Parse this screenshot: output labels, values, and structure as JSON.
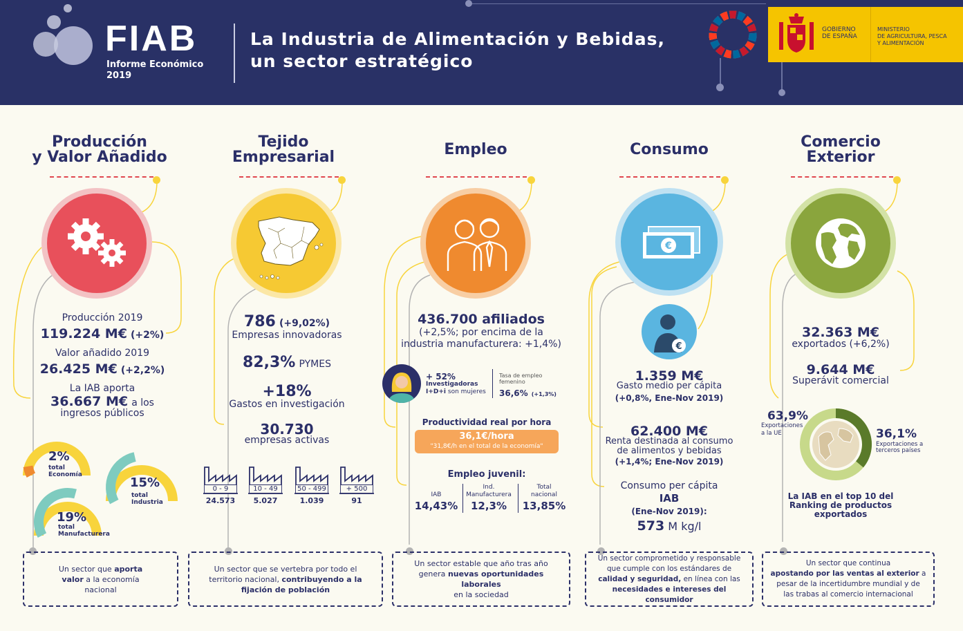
{
  "header": {
    "logo": "FIAB",
    "subtitle": "Informe Económico",
    "year": "2019",
    "title_line1": "La Industria de Alimentación y Bebidas,",
    "title_line2": "un sector estratégico",
    "gov_line1": "GOBIERNO",
    "gov_line2": "DE ESPAÑA",
    "ministry_line1": "MINISTERIO",
    "ministry_line2": "DE AGRICULTURA, PESCA",
    "ministry_line3": "Y ALIMENTACIÓN",
    "colors": {
      "navy": "#293166",
      "gold": "#f5c400"
    }
  },
  "produccion": {
    "title1": "Producción",
    "title2": "y Valor Añadido",
    "prod_label": "Producción 2019",
    "prod_value": "119.224 M€",
    "prod_change": "(+2%)",
    "va_label": "Valor añadido 2019",
    "va_value": "26.425 M€",
    "va_change": "(+2,2%)",
    "aporta_label": "La IAB aporta",
    "aporta_value": "36.667 M€",
    "aporta_suffix": "a los",
    "aporta_label2": "ingresos públicos",
    "g1_value": "2%",
    "g1_l1": "total",
    "g1_l2": "Economía",
    "g1_frac": 0.02,
    "g2_value": "15%",
    "g2_l1": "total",
    "g2_l2": "Industria",
    "g2_frac": 0.15,
    "g3_value": "19%",
    "g3_l1": "total",
    "g3_l2": "Manufacturera",
    "g3_frac": 0.19,
    "footer_a": "Un sector que",
    "footer_b": "aporta",
    "footer_c": "valor",
    "footer_d": "a la economía",
    "footer_e": "nacional",
    "color": "#e8505b"
  },
  "tejido": {
    "title1": "Tejido",
    "title2": "Empresarial",
    "innov_value": "786",
    "innov_change": "(+9,02%)",
    "innov_label": "Empresas innovadoras",
    "pymes_value": "82,3%",
    "pymes_label": "PYMES",
    "gastos_value": "+18%",
    "gastos_label": "Gastos en investigación",
    "activas_value": "30.730",
    "activas_label": "empresas activas",
    "factories": [
      {
        "range": "0 - 9",
        "count": "24.573"
      },
      {
        "range": "10 - 49",
        "count": "5.027"
      },
      {
        "range": "50 - 499",
        "count": "1.039"
      },
      {
        "range": "+ 500",
        "count": "91"
      }
    ],
    "footer_a": "Un sector que se vertebra por todo el",
    "footer_b": "territorio nacional,",
    "footer_c": "contribuyendo a la",
    "footer_d": "fijación de población",
    "color": "#f6c933"
  },
  "empleo": {
    "title": "Empleo",
    "afiliados": "436.700 afiliados",
    "afiliados_l1": "(+2,5%; por encima de la",
    "afiliados_l2": "industria manufacturera: +1,4%)",
    "inv_value": "+ 52%",
    "inv_l1": "Investigadoras",
    "inv_l2a": "I+D+i",
    "inv_l2b": "son mujeres",
    "tasa_l1": "Tasa de empleo",
    "tasa_l2": "femenino",
    "tasa_value": "36,6%",
    "tasa_change": "(+1,3%)",
    "prod_title": "Productividad real por hora",
    "prod_value": "36,1€/hora",
    "prod_note": "\"31,8€/h en el total de la economía\"",
    "juvenil_title": "Empleo juvenil:",
    "juv": [
      {
        "l1": "",
        "l2": "IAB",
        "value": "14,43%"
      },
      {
        "l1": "Ind.",
        "l2": "Manufacturera",
        "value": "12,3%"
      },
      {
        "l1": "Total",
        "l2": "nacional",
        "value": "13,85%"
      }
    ],
    "footer_a": "Un sector estable que año tras año",
    "footer_b": "genera",
    "footer_c": "nuevas oportunidades laborales",
    "footer_d": "en la sociedad",
    "color": "#ef8a2f"
  },
  "consumo": {
    "title": "Consumo",
    "gasto_value": "1.359 M€",
    "gasto_label": "Gasto medio per cápita",
    "gasto_change": "(+0,8%, Ene-Nov 2019)",
    "renta_value": "62.400 M€",
    "renta_l1": "Renta destinada al consumo",
    "renta_l2": "de alimentos y bebidas",
    "renta_change": "(+1,4%; Ene-Nov 2019)",
    "cpc_label": "Consumo per cápita",
    "cpc_l2": "IAB",
    "cpc_l3": "(Ene-Nov 2019):",
    "cpc_value": "573",
    "cpc_unit": "M kg/l",
    "footer_l1": "Un sector comprometido y responsable",
    "footer_l2": "que cumple con los estándares de",
    "footer_l3a": "calidad y seguridad,",
    "footer_l3b": "en línea con las",
    "footer_l4": "necesidades e intereses del consumidor",
    "color": "#5ab5e0"
  },
  "comercio": {
    "title1": "Comercio",
    "title2": "Exterior",
    "export_value": "32.363 M€",
    "export_label": "exportados (+6,2%)",
    "superavit_value": "9.644 M€",
    "superavit_label": "Superávit comercial",
    "ue_value": "63,9%",
    "ue_l1": "Exportaciones",
    "ue_l2": "a la UE",
    "ue_frac": 0.639,
    "terc_value": "36,1%",
    "terc_l1": "Exportaciones a",
    "terc_l2": "terceros países",
    "ranking_l1": "La IAB en el top 10 del",
    "ranking_l2": "Ranking de productos",
    "ranking_l3": "exportados",
    "footer_l1": "Un sector que continua",
    "footer_l2a": "apostando por las ventas al exterior",
    "footer_l2b": "a",
    "footer_l3": "pesar de la incertidumbre mundial y de",
    "footer_l4": "las trabas al comercio internacional",
    "color": "#8aa53d"
  }
}
